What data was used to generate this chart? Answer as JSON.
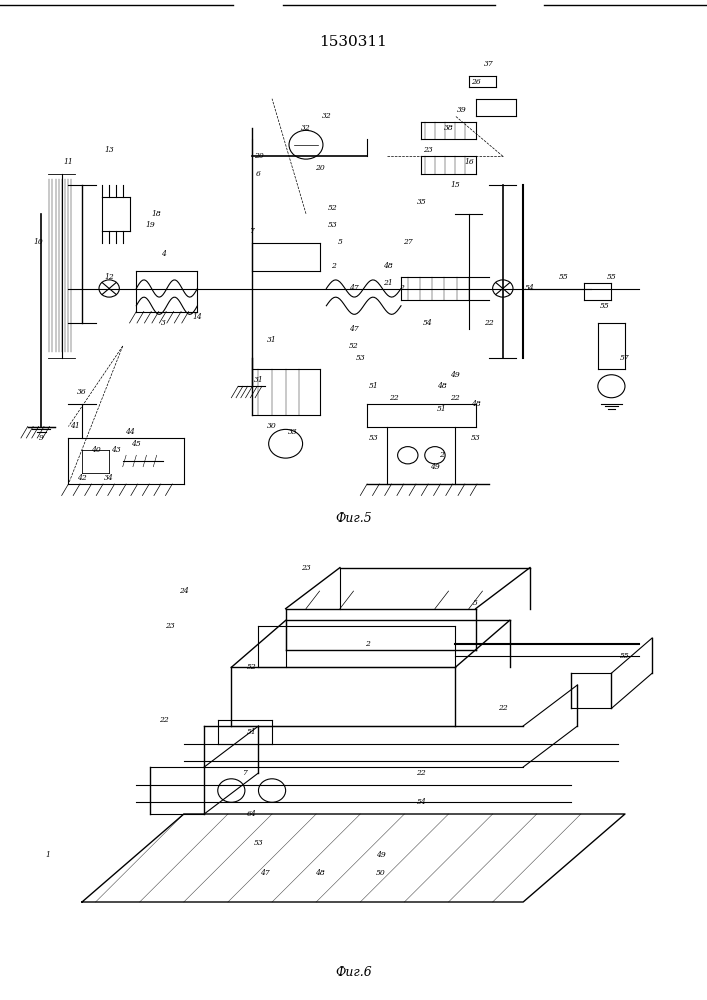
{
  "title": "1530311",
  "background_color": "#ffffff",
  "line_color": "#000000",
  "fig_width": 7.07,
  "fig_height": 10.0
}
